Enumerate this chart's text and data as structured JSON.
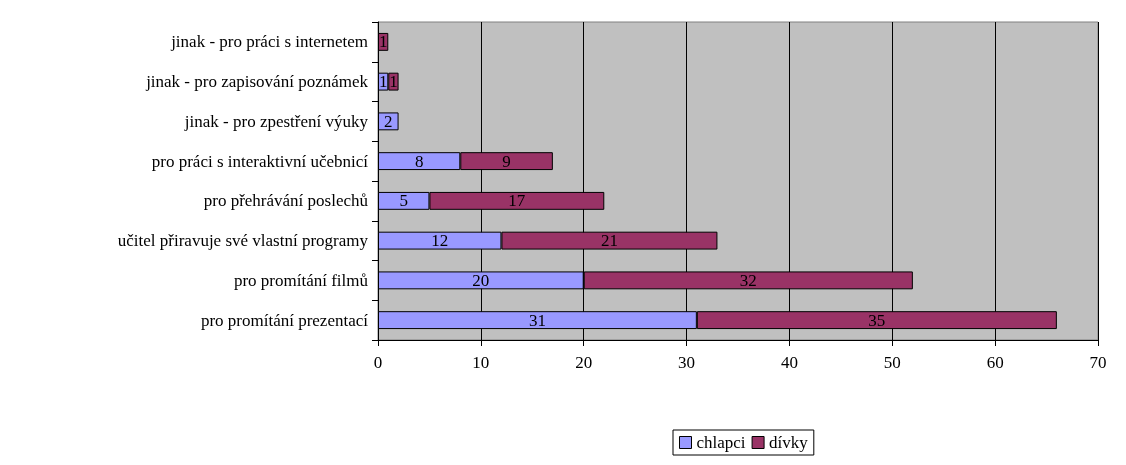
{
  "chart_data": {
    "type": "bar",
    "orientation": "horizontal",
    "stacked": true,
    "data_labels": true,
    "grid": "x",
    "legend": "bottom",
    "categories": [
      "jinak - pro práci s internetem",
      "jinak - pro zapisování poznámek",
      "jinak - pro zpestření výuky",
      "pro práci s interaktivní učebnicí",
      "pro přehrávání poslechů",
      "učitel přiravuje své vlastní programy",
      "pro promítání filmů",
      "pro promítání prezentací"
    ],
    "series": [
      {
        "name": "chlapci",
        "color": "#9999ff",
        "values": [
          null,
          1,
          2,
          8,
          5,
          12,
          20,
          31
        ]
      },
      {
        "name": "dívky",
        "color": "#993366",
        "values": [
          1,
          1,
          null,
          9,
          17,
          21,
          32,
          35
        ]
      }
    ],
    "xlim": [
      0,
      70
    ],
    "xticks": [
      0,
      10,
      20,
      30,
      40,
      50,
      60,
      70
    ]
  }
}
